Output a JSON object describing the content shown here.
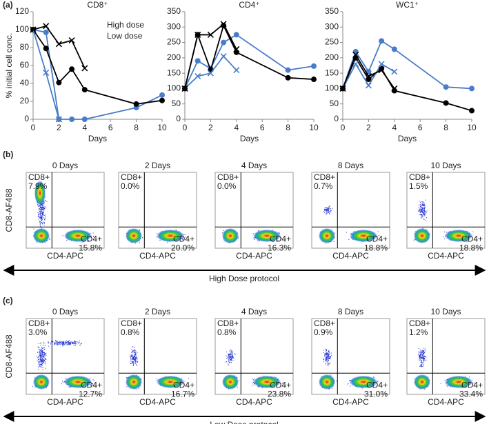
{
  "chart_data": [
    {
      "type": "line",
      "panel_label": "(a)",
      "title": "CD8⁺",
      "ylabel": "% initial cell conc.",
      "xlabel": "Days",
      "x": [
        0,
        1,
        2,
        3,
        4,
        8,
        10
      ],
      "xlim": [
        0,
        10
      ],
      "xticks": [
        0,
        2,
        4,
        6,
        8,
        10
      ],
      "ylim": [
        0,
        120
      ],
      "yticks": [
        0,
        20,
        40,
        60,
        80,
        100,
        120
      ],
      "legend": "upper right",
      "series": [
        {
          "name": "High dose",
          "color": "#4a7cc9",
          "marker": "circle",
          "values": [
            100,
            97,
            0,
            0,
            0,
            13,
            27
          ]
        },
        {
          "name": "Low dose",
          "color": "#000000",
          "marker": "circle",
          "values": [
            100,
            79,
            41,
            56,
            33,
            17,
            21
          ]
        },
        {
          "color": "#4a7cc9",
          "marker": "x",
          "values": [
            100,
            52,
            0,
            null,
            null,
            null,
            null
          ]
        },
        {
          "color": "#000000",
          "marker": "x",
          "values": [
            100,
            104,
            84,
            88,
            57,
            null,
            null
          ]
        }
      ]
    },
    {
      "type": "line",
      "title": "CD4⁺",
      "xlabel": "Days",
      "x": [
        0,
        1,
        2,
        3,
        4,
        8,
        10
      ],
      "xlim": [
        0,
        10
      ],
      "xticks": [
        0,
        2,
        4,
        6,
        8,
        10
      ],
      "ylim": [
        0,
        350
      ],
      "yticks": [
        0,
        50,
        100,
        150,
        200,
        250,
        300,
        350
      ],
      "series": [
        {
          "color": "#4a7cc9",
          "marker": "circle",
          "values": [
            100,
            190,
            165,
            250,
            275,
            160,
            173
          ]
        },
        {
          "color": "#000000",
          "marker": "circle",
          "values": [
            100,
            275,
            160,
            305,
            218,
            135,
            130
          ]
        },
        {
          "color": "#4a7cc9",
          "marker": "x",
          "values": [
            100,
            140,
            150,
            205,
            160,
            null,
            null
          ]
        },
        {
          "color": "#000000",
          "marker": "x",
          "values": [
            100,
            275,
            275,
            310,
            228,
            null,
            null
          ]
        }
      ]
    },
    {
      "type": "line",
      "title": "WC1⁺",
      "xlabel": "Days",
      "x": [
        0,
        1,
        2,
        3,
        4,
        8,
        10
      ],
      "xlim": [
        0,
        10
      ],
      "xticks": [
        0,
        2,
        4,
        6,
        8,
        10
      ],
      "ylim": [
        0,
        350
      ],
      "yticks": [
        0,
        50,
        100,
        150,
        200,
        250,
        300,
        350
      ],
      "series": [
        {
          "color": "#4a7cc9",
          "marker": "circle",
          "values": [
            100,
            220,
            155,
            255,
            228,
            105,
            100
          ]
        },
        {
          "color": "#000000",
          "marker": "circle",
          "values": [
            100,
            200,
            130,
            165,
            93,
            53,
            28
          ]
        },
        {
          "color": "#4a7cc9",
          "marker": "x",
          "values": [
            100,
            180,
            110,
            180,
            155,
            null,
            null
          ]
        },
        {
          "color": "#000000",
          "marker": "x",
          "values": [
            100,
            210,
            140,
            160,
            100,
            null,
            null
          ]
        }
      ]
    }
  ],
  "flow": {
    "ylabel": "CD8-AF488",
    "xlabel": "CD4-APC",
    "cd8_label": "CD8+",
    "cd4_label": "CD4+",
    "panels": [
      {
        "label": "(b)",
        "protocol": "High Dose protocol",
        "plots": [
          {
            "day": "0 Days",
            "cd8": "7.9%",
            "cd4": "15.8%"
          },
          {
            "day": "2 Days",
            "cd8": "0.0%",
            "cd4": "20.0%"
          },
          {
            "day": "4 Days",
            "cd8": "0.0%",
            "cd4": "16.3%"
          },
          {
            "day": "8 Days",
            "cd8": "0.7%",
            "cd4": "18.8%"
          },
          {
            "day": "10 Days",
            "cd8": "1.5%",
            "cd4": "18.8%"
          }
        ]
      },
      {
        "label": "(c)",
        "protocol": "Low Dose protocol",
        "plots": [
          {
            "day": "0 Days",
            "cd8": "3.0%",
            "cd4": "12.7%"
          },
          {
            "day": "2 Days",
            "cd8": "0.8%",
            "cd4": "16.7%"
          },
          {
            "day": "4 Days",
            "cd8": "0.8%",
            "cd4": "23.8%"
          },
          {
            "day": "8 Days",
            "cd8": "0.9%",
            "cd4": "31.0%"
          },
          {
            "day": "10 Days",
            "cd8": "1.2%",
            "cd4": "33.4%"
          }
        ]
      }
    ]
  }
}
